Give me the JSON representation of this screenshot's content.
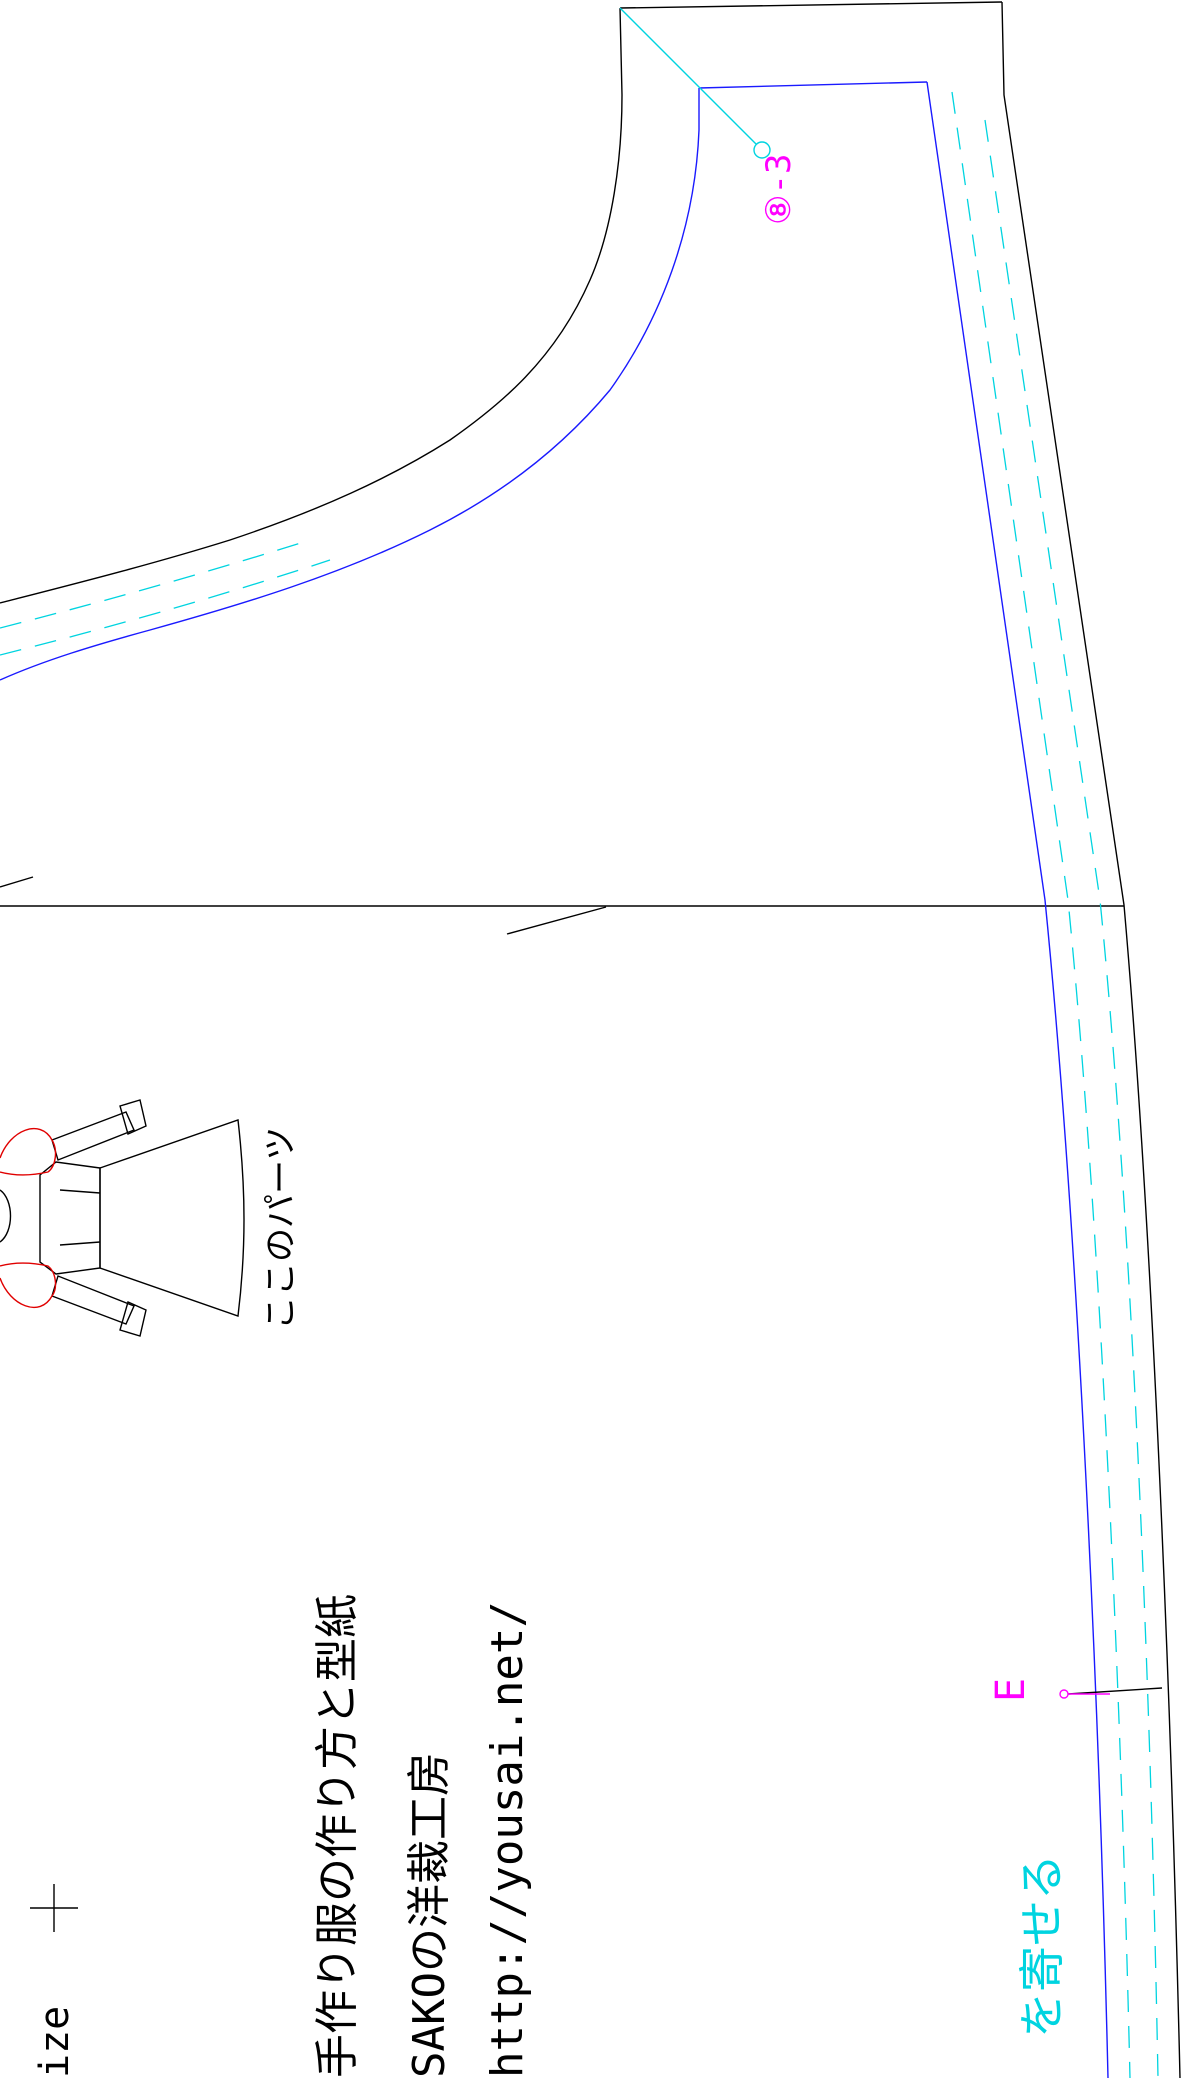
{
  "labels": {
    "part_code": "⑧-3",
    "mark_letter": "E",
    "gather_note": "を寄せる",
    "this_part": "ここのパーツ",
    "size_fragment": "ize",
    "title_line1": "手作り服の作り方と型紙",
    "title_line2": "SAKOの洋裁工房",
    "title_line3": "http://yousai.net/"
  },
  "colors": {
    "cut_line": "#000000",
    "sew_line": "#1a1aff",
    "guide_line": "#00d4e0",
    "annotation": "#ff00ff",
    "sleeve_highlight": "#e00000"
  }
}
